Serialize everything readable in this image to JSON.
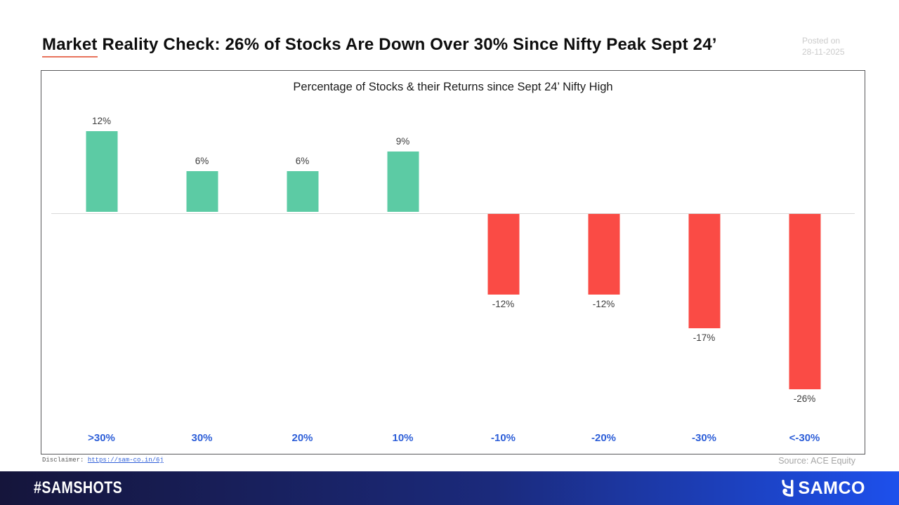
{
  "header": {
    "title_part1": "Market",
    "title_part2": " Reality Check: 26% of Stocks Are Down Over 30% Since Nifty Peak Sept 24’",
    "posted_on_line1": "Posted on",
    "posted_on_line2": "28-11-2025"
  },
  "chart_data": {
    "type": "bar",
    "title": "Percentage of Stocks & their Returns since Sept 24’ Nifty High",
    "categories": [
      ">30%",
      "30%",
      "20%",
      "10%",
      "-10%",
      "-20%",
      "-30%",
      "<-30%"
    ],
    "values": [
      12,
      6,
      6,
      9,
      -12,
      -12,
      -17,
      -26
    ],
    "labels": [
      "12%",
      "6%",
      "6%",
      "9%",
      "-12%",
      "-12%",
      "-17%",
      "-26%"
    ],
    "xlabel": "",
    "ylabel": "",
    "ylim": [
      -30,
      14
    ],
    "grid": false,
    "legend": false,
    "positive_color": "#5ccba4",
    "negative_color": "#fa4b45",
    "category_label_color": "#2e5fd8",
    "baseline_color": "#d9d9d9"
  },
  "footnotes": {
    "disclaimer_label": "Disclaimer:",
    "disclaimer_link": "https://sam-co.in/6j",
    "source": "Source: ACE Equity"
  },
  "footer": {
    "hashtag": "#SAMSHOTS",
    "brand": "SAMCO",
    "gradient_left": "#15153b",
    "gradient_mid": "#1b2a7c",
    "gradient_right": "#1d50ec"
  }
}
